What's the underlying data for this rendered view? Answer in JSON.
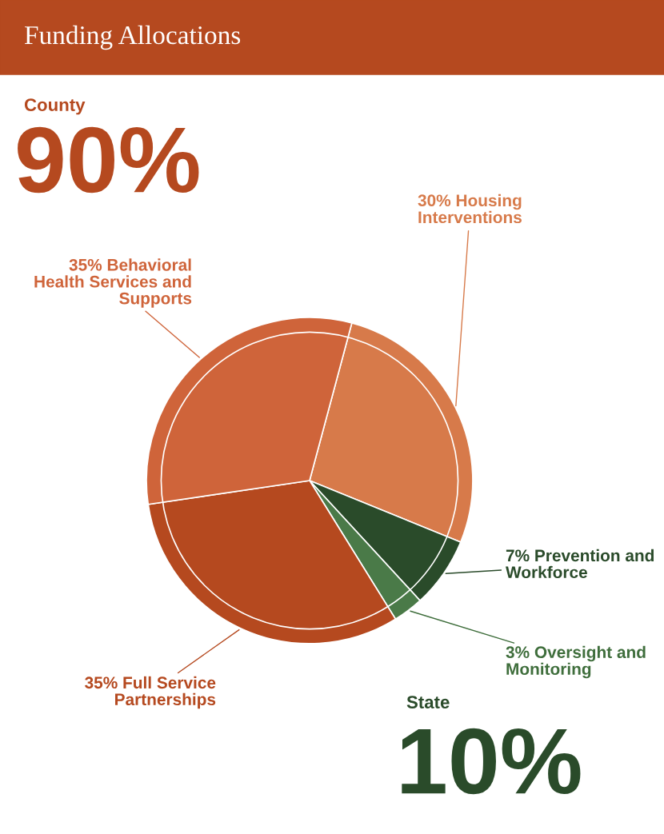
{
  "chart_data": {
    "type": "pie",
    "title": "Funding Allocations",
    "categories": [
      "30% Housing Interventions",
      "7% Prevention and Workforce",
      "3% Oversight and Monitoring",
      "35% Full Service Partnerships",
      "35% Behavioral Health Services and Supports"
    ],
    "values": [
      27,
      7,
      3,
      31.5,
      31.5
    ],
    "colors": [
      "#d77a4a",
      "#2a4b2a",
      "#4a7a48",
      "#b5491f",
      "#cf643a"
    ],
    "annotations": [
      "County",
      "90%",
      "State",
      "10%"
    ]
  }
}
